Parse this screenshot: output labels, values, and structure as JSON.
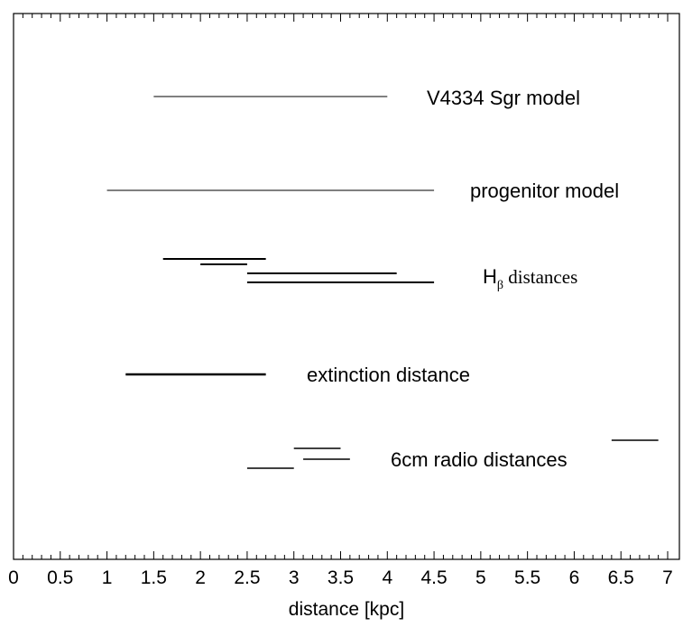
{
  "chart_data": {
    "type": "range",
    "xlabel": "distance [kpc]",
    "xlim": [
      0,
      7
    ],
    "xticks": [
      0,
      0.5,
      1,
      1.5,
      2,
      2.5,
      3,
      3.5,
      4,
      4.5,
      5,
      5.5,
      6,
      6.5,
      7
    ],
    "xtick_labels": [
      "0",
      "0.5",
      "1",
      "1.5",
      "2",
      "2.5",
      "3",
      "3.5",
      "4",
      "4.5",
      "5",
      "5.5",
      "6",
      "6.5",
      "7"
    ],
    "grid": false,
    "groups": [
      {
        "label": "V4334 Sgr model",
        "ranges": [
          [
            1.5,
            4.0
          ]
        ]
      },
      {
        "label": "progenitor model",
        "ranges": [
          [
            1.0,
            4.5
          ]
        ]
      },
      {
        "label_main": "H",
        "label_sub": "β",
        "label_rest": " distances",
        "ranges": [
          [
            1.6,
            2.7
          ],
          [
            2.0,
            2.5
          ],
          [
            2.5,
            4.1
          ],
          [
            2.5,
            4.5
          ]
        ]
      },
      {
        "label": "extinction distance",
        "ranges": [
          [
            1.2,
            2.7
          ]
        ]
      },
      {
        "label": "6cm radio distances",
        "ranges": [
          [
            3.0,
            3.5
          ],
          [
            3.1,
            3.6
          ],
          [
            2.5,
            3.0
          ],
          [
            6.4,
            6.9
          ]
        ]
      }
    ]
  }
}
